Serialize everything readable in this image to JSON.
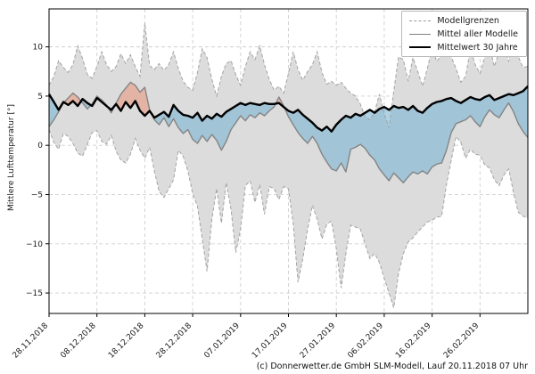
{
  "figure": {
    "caption": "(c) Donnerwetter.de GmbH SLM-Modell, Lauf 20.11.2018 07 Uhr"
  },
  "chart_data": {
    "type": "line",
    "title": "",
    "xlabel": "",
    "ylabel": "Mittlere Lufttemperatur [°]",
    "ylim": [
      -17.1,
      13.9
    ],
    "grid": true,
    "legend_position": "upper right",
    "yticks": [
      {
        "value": 10,
        "label": "10"
      },
      {
        "value": 5,
        "label": "5"
      },
      {
        "value": 0,
        "label": "0"
      },
      {
        "value": -5,
        "label": "−5"
      },
      {
        "value": -10,
        "label": "−10"
      },
      {
        "value": -15,
        "label": "−15"
      }
    ],
    "xticks": [
      {
        "day": 0,
        "label": "28.11.2018"
      },
      {
        "day": 10,
        "label": "08.12.2018"
      },
      {
        "day": 20,
        "label": "18.12.2018"
      },
      {
        "day": 30,
        "label": "28.12.2018"
      },
      {
        "day": 40,
        "label": "07.01.2019"
      },
      {
        "day": 50,
        "label": "17.01.2019"
      },
      {
        "day": 60,
        "label": "27.01.2019"
      },
      {
        "day": 70,
        "label": "06.02.2019"
      },
      {
        "day": 80,
        "label": "16.02.2019"
      },
      {
        "day": 90,
        "label": "26.02.2019"
      }
    ],
    "legend": {
      "entries": [
        {
          "label": "Modellgrenzen",
          "style": "dashed-gray"
        },
        {
          "label": "Mittel aller Modelle",
          "style": "solid-gray"
        },
        {
          "label": "Mittelwert 30 Jahre",
          "style": "thick-black"
        }
      ]
    },
    "colors": {
      "envelope_fill": "#dcdcdc",
      "envelope_border": "#a3a3a3",
      "warm_fill": "rgba(233,148,120,0.55)",
      "cold_fill": "rgba(125,180,212,0.62)",
      "model_mean_line": "#848484",
      "climate_mean_line": "#000000",
      "grid_line": "#cfcfcf",
      "axis": "#000000"
    },
    "series": [
      {
        "name": "Modellgrenzen obere Grenze",
        "role": "upper",
        "values": [
          6.1,
          7.0,
          8.6,
          7.9,
          7.4,
          8.2,
          10.1,
          8.8,
          7.2,
          6.8,
          8.0,
          9.5,
          8.2,
          7.5,
          8.0,
          9.3,
          8.3,
          9.2,
          8.0,
          7.0,
          12.4,
          8.1,
          7.7,
          8.3,
          7.6,
          8.2,
          9.5,
          7.8,
          6.5,
          5.9,
          5.6,
          7.4,
          9.8,
          8.9,
          6.7,
          5.0,
          7.0,
          8.3,
          8.6,
          7.2,
          6.1,
          8.0,
          9.5,
          8.7,
          10.1,
          8.2,
          6.7,
          5.6,
          6.0,
          5.3,
          7.3,
          9.5,
          7.7,
          6.6,
          7.5,
          8.2,
          9.5,
          7.4,
          6.2,
          6.5,
          6.1,
          6.4,
          5.8,
          5.3,
          5.0,
          4.2,
          2.9,
          2.6,
          3.4,
          5.2,
          3.2,
          1.8,
          5.5,
          9.0,
          8.7,
          6.5,
          8.9,
          7.5,
          6.0,
          7.8,
          9.8,
          8.5,
          9.3,
          9.5,
          9.0,
          7.8,
          6.4,
          7.0,
          9.8,
          8.2,
          7.3,
          9.0,
          10.1,
          8.0,
          9.5,
          10.0,
          8.5,
          11.5,
          9.0,
          7.9,
          8.0
        ]
      },
      {
        "name": "Modellgrenzen untere Grenze",
        "role": "lower",
        "values": [
          1.6,
          0.3,
          -0.4,
          1.2,
          0.9,
          0.2,
          -0.8,
          -1.1,
          0.1,
          1.3,
          1.5,
          0.4,
          0.1,
          1.0,
          -0.6,
          -1.5,
          -1.8,
          -0.9,
          0.7,
          -0.5,
          -1.3,
          -0.2,
          -2.6,
          -4.7,
          -5.3,
          -4.4,
          -3.5,
          -0.5,
          -1.1,
          -2.6,
          -4.9,
          -6.2,
          -9.5,
          -12.8,
          -7.5,
          -4.4,
          -7.9,
          -3.8,
          -6.5,
          -10.9,
          -8.5,
          -4.1,
          -3.6,
          -5.8,
          -4.0,
          -7.0,
          -4.2,
          -4.4,
          -5.5,
          -4.2,
          -4.4,
          -8.0,
          -13.9,
          -11.5,
          -8.5,
          -6.1,
          -7.5,
          -9.5,
          -8.0,
          -7.7,
          -10.5,
          -14.5,
          -11.0,
          -8.1,
          -8.3,
          -8.5,
          -10.0,
          -11.5,
          -11.0,
          -11.9,
          -13.5,
          -15.0,
          -16.5,
          -13.0,
          -11.0,
          -9.8,
          -9.4,
          -8.8,
          -8.3,
          -7.8,
          -7.6,
          -7.3,
          -7.2,
          -4.0,
          -1.5,
          0.9,
          0.3,
          -1.3,
          -0.4,
          -0.9,
          -1.0,
          -2.0,
          -2.3,
          -3.5,
          -4.1,
          -3.0,
          -2.4,
          -4.8,
          -6.8,
          -7.2,
          -7.4
        ]
      },
      {
        "name": "Mittel aller Modelle",
        "role": "model_mean",
        "values": [
          1.9,
          2.6,
          3.4,
          4.3,
          4.8,
          5.3,
          4.9,
          4.3,
          3.7,
          4.2,
          5.0,
          4.6,
          4.1,
          3.3,
          4.3,
          5.2,
          5.8,
          6.4,
          6.1,
          5.4,
          5.9,
          3.6,
          2.6,
          2.1,
          2.8,
          1.9,
          2.7,
          1.8,
          1.2,
          1.6,
          0.6,
          0.2,
          1.0,
          0.4,
          1.1,
          0.5,
          -0.5,
          0.4,
          1.6,
          2.3,
          3.0,
          2.5,
          3.1,
          2.8,
          3.3,
          3.0,
          3.5,
          3.9,
          4.9,
          4.0,
          2.9,
          2.1,
          1.3,
          0.7,
          0.2,
          0.9,
          0.2,
          -0.9,
          -1.7,
          -2.4,
          -2.6,
          -1.8,
          -2.7,
          -0.4,
          -0.2,
          0.1,
          -0.3,
          -1.0,
          -1.5,
          -2.4,
          -3.0,
          -3.6,
          -2.8,
          -3.3,
          -3.8,
          -3.2,
          -2.7,
          -2.9,
          -2.6,
          -2.9,
          -2.2,
          -1.9,
          -1.8,
          -0.5,
          1.3,
          2.2,
          2.4,
          2.6,
          3.0,
          2.4,
          1.9,
          2.9,
          3.6,
          3.1,
          2.8,
          3.6,
          4.3,
          3.4,
          2.2,
          1.4,
          0.8
        ]
      },
      {
        "name": "Mittelwert 30 Jahre",
        "role": "climate_mean",
        "values": [
          5.2,
          4.4,
          3.6,
          4.4,
          4.1,
          4.5,
          4.0,
          4.7,
          4.3,
          4.0,
          4.8,
          4.4,
          4.0,
          3.6,
          4.2,
          3.5,
          4.4,
          3.8,
          4.5,
          3.5,
          3.0,
          3.5,
          2.8,
          3.1,
          3.4,
          2.9,
          4.1,
          3.5,
          3.1,
          3.0,
          2.8,
          3.3,
          2.5,
          3.0,
          2.7,
          3.2,
          2.9,
          3.4,
          3.7,
          4.0,
          4.3,
          4.1,
          4.3,
          4.2,
          4.1,
          4.3,
          4.2,
          4.2,
          4.3,
          3.9,
          3.5,
          3.3,
          3.6,
          3.1,
          2.7,
          2.3,
          1.8,
          1.5,
          1.9,
          1.4,
          2.1,
          2.6,
          3.0,
          2.8,
          3.2,
          3.0,
          3.3,
          3.6,
          3.3,
          3.7,
          3.9,
          3.6,
          4.0,
          3.8,
          3.9,
          3.6,
          4.0,
          3.5,
          3.3,
          3.8,
          4.2,
          4.4,
          4.5,
          4.7,
          4.8,
          4.5,
          4.3,
          4.6,
          4.9,
          4.7,
          4.6,
          4.9,
          5.1,
          4.6,
          4.8,
          5.0,
          5.2,
          5.1,
          5.3,
          5.5,
          6.0
        ]
      }
    ]
  }
}
